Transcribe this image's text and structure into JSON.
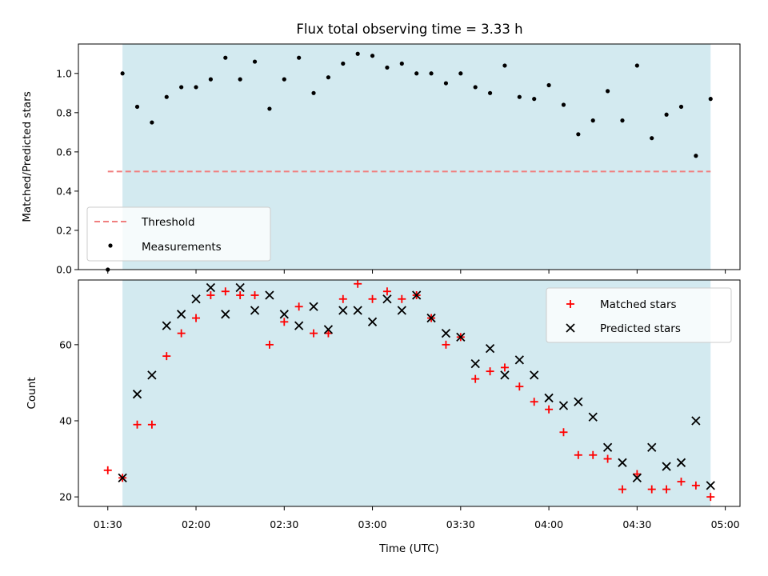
{
  "chart_data": [
    {
      "type": "scatter",
      "title": "Flux total observing time = 3.33 h",
      "ylabel": "Matched/Predicted stars",
      "xlabel": "",
      "ylim": [
        0,
        1.15
      ],
      "yticks": [
        0.0,
        0.2,
        0.4,
        0.6,
        0.8,
        1.0
      ],
      "ytick_labels": [
        "0.0",
        "0.2",
        "0.4",
        "0.6",
        "0.8",
        "1.0"
      ],
      "x_minutes_range": [
        80,
        305
      ],
      "shaded_span": [
        "01:35",
        "04:55"
      ],
      "shade_color": "#d3eaf0",
      "grid": false,
      "legend_position": "lower-left",
      "threshold": {
        "name": "Threshold",
        "y": 0.5,
        "x": [
          "01:30",
          "04:55"
        ],
        "color": "#f07f7f"
      },
      "series": [
        {
          "name": "Measurements",
          "color": "#000000",
          "marker": "dot",
          "points": [
            [
              "01:30",
              0.0
            ],
            [
              "01:35",
              1.0
            ],
            [
              "01:40",
              0.83
            ],
            [
              "01:45",
              0.75
            ],
            [
              "01:50",
              0.88
            ],
            [
              "01:55",
              0.93
            ],
            [
              "02:00",
              0.93
            ],
            [
              "02:05",
              0.97
            ],
            [
              "02:10",
              1.08
            ],
            [
              "02:15",
              0.97
            ],
            [
              "02:20",
              1.06
            ],
            [
              "02:25",
              0.82
            ],
            [
              "02:30",
              0.97
            ],
            [
              "02:35",
              1.08
            ],
            [
              "02:40",
              0.9
            ],
            [
              "02:45",
              0.98
            ],
            [
              "02:50",
              1.05
            ],
            [
              "02:55",
              1.1
            ],
            [
              "03:00",
              1.09
            ],
            [
              "03:05",
              1.03
            ],
            [
              "03:10",
              1.05
            ],
            [
              "03:15",
              1.0
            ],
            [
              "03:20",
              1.0
            ],
            [
              "03:25",
              0.95
            ],
            [
              "03:30",
              1.0
            ],
            [
              "03:35",
              0.93
            ],
            [
              "03:40",
              0.9
            ],
            [
              "03:45",
              1.04
            ],
            [
              "03:50",
              0.88
            ],
            [
              "03:55",
              0.87
            ],
            [
              "04:00",
              0.94
            ],
            [
              "04:05",
              0.84
            ],
            [
              "04:10",
              0.69
            ],
            [
              "04:15",
              0.76
            ],
            [
              "04:20",
              0.91
            ],
            [
              "04:25",
              0.76
            ],
            [
              "04:30",
              1.04
            ],
            [
              "04:35",
              0.67
            ],
            [
              "04:40",
              0.79
            ],
            [
              "04:45",
              0.83
            ],
            [
              "04:50",
              0.58
            ],
            [
              "04:55",
              0.87
            ]
          ]
        }
      ]
    },
    {
      "type": "scatter",
      "title": "",
      "xlabel": "Time (UTC)",
      "ylabel": "Count",
      "ylim": [
        17.5,
        77
      ],
      "yticks": [
        20,
        40,
        60
      ],
      "ytick_labels": [
        "20",
        "40",
        "60"
      ],
      "x_minutes_range": [
        80,
        305
      ],
      "xticks": [
        "01:30",
        "02:00",
        "02:30",
        "03:00",
        "03:30",
        "04:00",
        "04:30",
        "05:00"
      ],
      "shaded_span": [
        "01:35",
        "04:55"
      ],
      "shade_color": "#d3eaf0",
      "grid": false,
      "legend_position": "upper-right",
      "series": [
        {
          "name": "Matched stars",
          "color": "#ff0000",
          "marker": "plus",
          "points": [
            [
              "01:30",
              27
            ],
            [
              "01:35",
              25
            ],
            [
              "01:40",
              39
            ],
            [
              "01:45",
              39
            ],
            [
              "01:50",
              57
            ],
            [
              "01:55",
              63
            ],
            [
              "02:00",
              67
            ],
            [
              "02:05",
              73
            ],
            [
              "02:10",
              74
            ],
            [
              "02:15",
              73
            ],
            [
              "02:20",
              73
            ],
            [
              "02:25",
              60
            ],
            [
              "02:30",
              66
            ],
            [
              "02:35",
              70
            ],
            [
              "02:40",
              63
            ],
            [
              "02:45",
              63
            ],
            [
              "02:50",
              72
            ],
            [
              "02:55",
              76
            ],
            [
              "03:00",
              72
            ],
            [
              "03:05",
              74
            ],
            [
              "03:10",
              72
            ],
            [
              "03:15",
              73
            ],
            [
              "03:20",
              67
            ],
            [
              "03:25",
              60
            ],
            [
              "03:30",
              62
            ],
            [
              "03:35",
              51
            ],
            [
              "03:40",
              53
            ],
            [
              "03:45",
              54
            ],
            [
              "03:50",
              49
            ],
            [
              "03:55",
              45
            ],
            [
              "04:00",
              43
            ],
            [
              "04:05",
              37
            ],
            [
              "04:10",
              31
            ],
            [
              "04:15",
              31
            ],
            [
              "04:20",
              30
            ],
            [
              "04:25",
              22
            ],
            [
              "04:30",
              26
            ],
            [
              "04:35",
              22
            ],
            [
              "04:40",
              22
            ],
            [
              "04:45",
              24
            ],
            [
              "04:50",
              23
            ],
            [
              "04:55",
              20
            ]
          ]
        },
        {
          "name": "Predicted stars",
          "color": "#000000",
          "marker": "x",
          "points": [
            [
              "01:35",
              25
            ],
            [
              "01:40",
              47
            ],
            [
              "01:45",
              52
            ],
            [
              "01:50",
              65
            ],
            [
              "01:55",
              68
            ],
            [
              "02:00",
              72
            ],
            [
              "02:05",
              75
            ],
            [
              "02:10",
              68
            ],
            [
              "02:15",
              75
            ],
            [
              "02:20",
              69
            ],
            [
              "02:25",
              73
            ],
            [
              "02:30",
              68
            ],
            [
              "02:35",
              65
            ],
            [
              "02:40",
              70
            ],
            [
              "02:45",
              64
            ],
            [
              "02:50",
              69
            ],
            [
              "02:55",
              69
            ],
            [
              "03:00",
              66
            ],
            [
              "03:05",
              72
            ],
            [
              "03:10",
              69
            ],
            [
              "03:15",
              73
            ],
            [
              "03:20",
              67
            ],
            [
              "03:25",
              63
            ],
            [
              "03:30",
              62
            ],
            [
              "03:35",
              55
            ],
            [
              "03:40",
              59
            ],
            [
              "03:45",
              52
            ],
            [
              "03:50",
              56
            ],
            [
              "03:55",
              52
            ],
            [
              "04:00",
              46
            ],
            [
              "04:05",
              44
            ],
            [
              "04:10",
              45
            ],
            [
              "04:15",
              41
            ],
            [
              "04:20",
              33
            ],
            [
              "04:25",
              29
            ],
            [
              "04:30",
              25
            ],
            [
              "04:35",
              33
            ],
            [
              "04:40",
              28
            ],
            [
              "04:45",
              29
            ],
            [
              "04:50",
              40
            ],
            [
              "04:55",
              23
            ]
          ]
        }
      ]
    }
  ]
}
